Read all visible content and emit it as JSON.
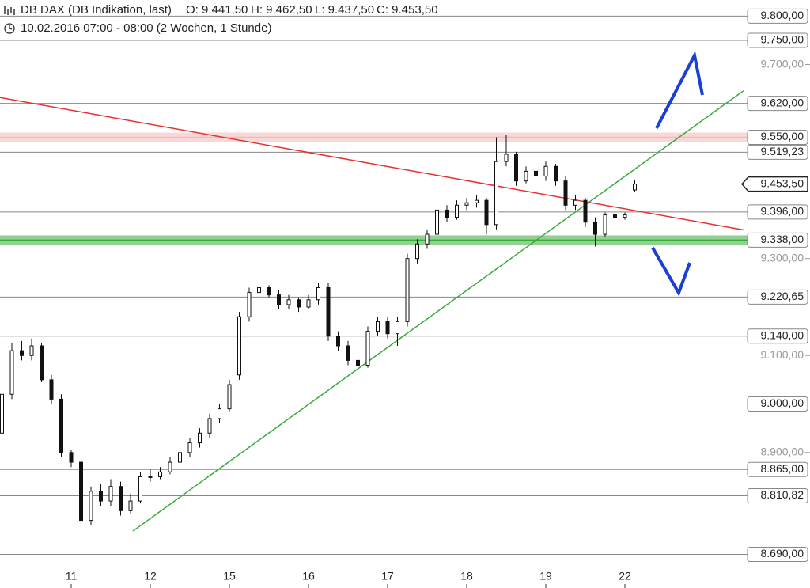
{
  "chart_data": {
    "type": "candlestick",
    "title": "DB DAX (DB Indikation, last)",
    "ohlc_texts": [
      "O: 9.441,50",
      "H: 9.462,50",
      "L: 9.437,50",
      "C: 9.453,50"
    ],
    "subtitle": "10.02.2016 07:00 - 08:00 (2 Wochen, 1 Stunde)",
    "x": [
      1,
      2,
      3,
      4,
      5,
      6,
      7,
      8,
      9,
      10,
      11,
      12,
      13,
      14,
      15,
      16,
      17,
      18,
      19,
      20,
      21,
      22,
      23,
      24,
      25,
      26,
      27,
      28,
      29,
      30,
      31,
      32,
      33,
      34,
      35,
      36,
      37,
      38,
      39,
      40,
      41,
      42,
      43,
      44,
      45,
      46,
      47,
      48,
      49,
      50,
      51,
      52,
      53,
      54,
      55,
      56,
      57,
      58,
      59,
      60,
      61,
      62,
      63,
      64,
      65
    ],
    "open": [
      8940,
      9020,
      9110,
      9100,
      9120,
      9050,
      9010,
      8900,
      8880,
      8760,
      8820,
      8800,
      8830,
      8780,
      8800,
      8850,
      8850,
      8860,
      8880,
      8900,
      8920,
      8940,
      8970,
      8990,
      9060,
      9180,
      9230,
      9240,
      9225,
      9205,
      9215,
      9200,
      9215,
      9240,
      9140,
      9120,
      9090,
      9080,
      9150,
      9170,
      9145,
      9170,
      9300,
      9330,
      9350,
      9400,
      9385,
      9410,
      9415,
      9420,
      9370,
      9500,
      9515,
      9460,
      9480,
      9470,
      9490,
      9460,
      9410,
      9420,
      9375,
      9350,
      9390,
      9385,
      9441.5
    ],
    "high": [
      9040,
      9125,
      9130,
      9135,
      9125,
      9060,
      9020,
      8905,
      8890,
      8830,
      8835,
      8845,
      8840,
      8815,
      8860,
      8865,
      8870,
      8890,
      8910,
      8930,
      8950,
      8980,
      9000,
      9050,
      9190,
      9240,
      9250,
      9245,
      9235,
      9225,
      9220,
      9225,
      9250,
      9250,
      9150,
      9130,
      9100,
      9160,
      9180,
      9180,
      9180,
      9310,
      9340,
      9360,
      9410,
      9410,
      9420,
      9425,
      9430,
      9425,
      9550,
      9555,
      9520,
      9490,
      9485,
      9500,
      9495,
      9470,
      9430,
      9425,
      9385,
      9395,
      9395,
      9395,
      9462.5
    ],
    "low": [
      8890,
      9010,
      9090,
      9090,
      9045,
      9000,
      8890,
      8870,
      8700,
      8750,
      8790,
      8790,
      8770,
      8775,
      8795,
      8840,
      8845,
      8855,
      8870,
      8890,
      8910,
      8930,
      8960,
      8985,
      9050,
      9170,
      9220,
      9220,
      9195,
      9195,
      9190,
      9195,
      9205,
      9130,
      9110,
      9080,
      9060,
      9075,
      9140,
      9135,
      9120,
      9160,
      9290,
      9320,
      9340,
      9375,
      9380,
      9400,
      9405,
      9350,
      9360,
      9490,
      9450,
      9455,
      9460,
      9460,
      9450,
      9400,
      9400,
      9365,
      9325,
      9345,
      9375,
      9380,
      9437.5
    ],
    "close": [
      9020,
      9110,
      9100,
      9120,
      9050,
      9010,
      8900,
      8880,
      8760,
      8820,
      8800,
      8830,
      8780,
      8800,
      8850,
      8850,
      8860,
      8880,
      8900,
      8920,
      8940,
      8970,
      8990,
      9040,
      9180,
      9230,
      9240,
      9225,
      9205,
      9215,
      9200,
      9215,
      9240,
      9140,
      9120,
      9090,
      9080,
      9150,
      9170,
      9145,
      9170,
      9300,
      9330,
      9350,
      9400,
      9385,
      9410,
      9415,
      9420,
      9370,
      9500,
      9515,
      9460,
      9480,
      9470,
      9490,
      9460,
      9410,
      9420,
      9375,
      9350,
      9390,
      9385,
      9390,
      9453.5
    ],
    "xlim": [
      0.8,
      76
    ],
    "ylim": [
      8650,
      9825
    ],
    "xticks": [
      {
        "value": 8,
        "label": "11"
      },
      {
        "value": 16,
        "label": "12"
      },
      {
        "value": 24,
        "label": "15"
      },
      {
        "value": 32,
        "label": "16"
      },
      {
        "value": 40,
        "label": "17"
      },
      {
        "value": 48,
        "label": "18"
      },
      {
        "value": 56,
        "label": "19"
      },
      {
        "value": 64,
        "label": "22"
      }
    ],
    "yticks": [
      {
        "value": 9700,
        "label": "9.700,00"
      },
      {
        "value": 9300,
        "label": "9.300,00"
      },
      {
        "value": 9100,
        "label": "9.100,00"
      },
      {
        "value": 8900,
        "label": "8.900,00"
      }
    ],
    "levels": [
      {
        "value": 9800,
        "label": "9.800,00"
      },
      {
        "value": 9750,
        "label": "9.750,00"
      },
      {
        "value": 9620,
        "label": "9.620,00"
      },
      {
        "value": 9550,
        "label": "9.550,00",
        "color": "#f4b8b8"
      },
      {
        "value": 9519.23,
        "label": "9.519,23"
      },
      {
        "value": 9396,
        "label": "9.396,00"
      },
      {
        "value": 9338,
        "label": "9.338,00",
        "color": "#3aaa3a"
      },
      {
        "value": 9220.65,
        "label": "9.220,65"
      },
      {
        "value": 9140,
        "label": "9.140,00"
      },
      {
        "value": 9000,
        "label": "9.000,00"
      },
      {
        "value": 8865,
        "label": "8.865,00"
      },
      {
        "value": 8810.82,
        "label": "8.810,82"
      },
      {
        "value": 8690,
        "label": "8.690,00"
      }
    ],
    "current_price": {
      "value": 9453.5,
      "label": "9.453,50"
    },
    "trendlines": [
      {
        "color": "#e83030",
        "x": [
          0.8,
          76
        ],
        "y": [
          9632,
          9359
        ]
      },
      {
        "color": "#3aaa3a",
        "x": [
          14.24,
          76
        ],
        "y": [
          8738,
          9646
        ]
      }
    ]
  }
}
